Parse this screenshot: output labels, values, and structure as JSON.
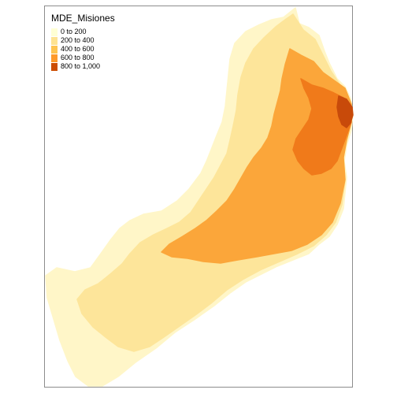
{
  "legend": {
    "title": "MDE_Misiones",
    "classes": [
      {
        "label": "0 to 200",
        "color": "#ffffd4"
      },
      {
        "label": "200 to 400",
        "color": "#fee391"
      },
      {
        "label": "400 to 600",
        "color": "#fec44f"
      },
      {
        "label": "600 to 800",
        "color": "#fe9929"
      },
      {
        "label": "800 to 1,000",
        "color": "#cc4c02"
      }
    ]
  },
  "map_colors": {
    "class_0": "#fff6c8",
    "class_1": "#fde59a",
    "class_2": "#fba63a",
    "class_3": "#f07a1a",
    "class_4": "#c84a0a",
    "frame": "#8c8c8c"
  }
}
